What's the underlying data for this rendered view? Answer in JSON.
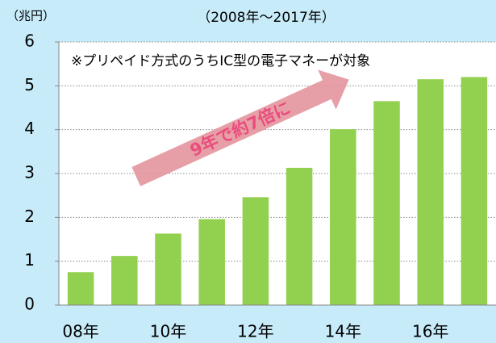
{
  "chart_data": {
    "type": "bar",
    "y_unit": "（兆円）",
    "subtitle": "（2008年～2017年）",
    "note": "※プリペイド方式のうちIC型の電子マネーが対象",
    "annotation": "9年で約7倍に",
    "categories": [
      "08年",
      null,
      "10年",
      null,
      "12年",
      null,
      "14年",
      null,
      "16年",
      null
    ],
    "values": [
      0.75,
      1.12,
      1.63,
      1.96,
      2.46,
      3.13,
      4.01,
      4.65,
      5.15,
      5.2
    ],
    "color": "#92d050",
    "ylim": [
      0,
      6
    ],
    "yticks": [
      0,
      1,
      2,
      3,
      4,
      5,
      6
    ],
    "grid": true
  }
}
